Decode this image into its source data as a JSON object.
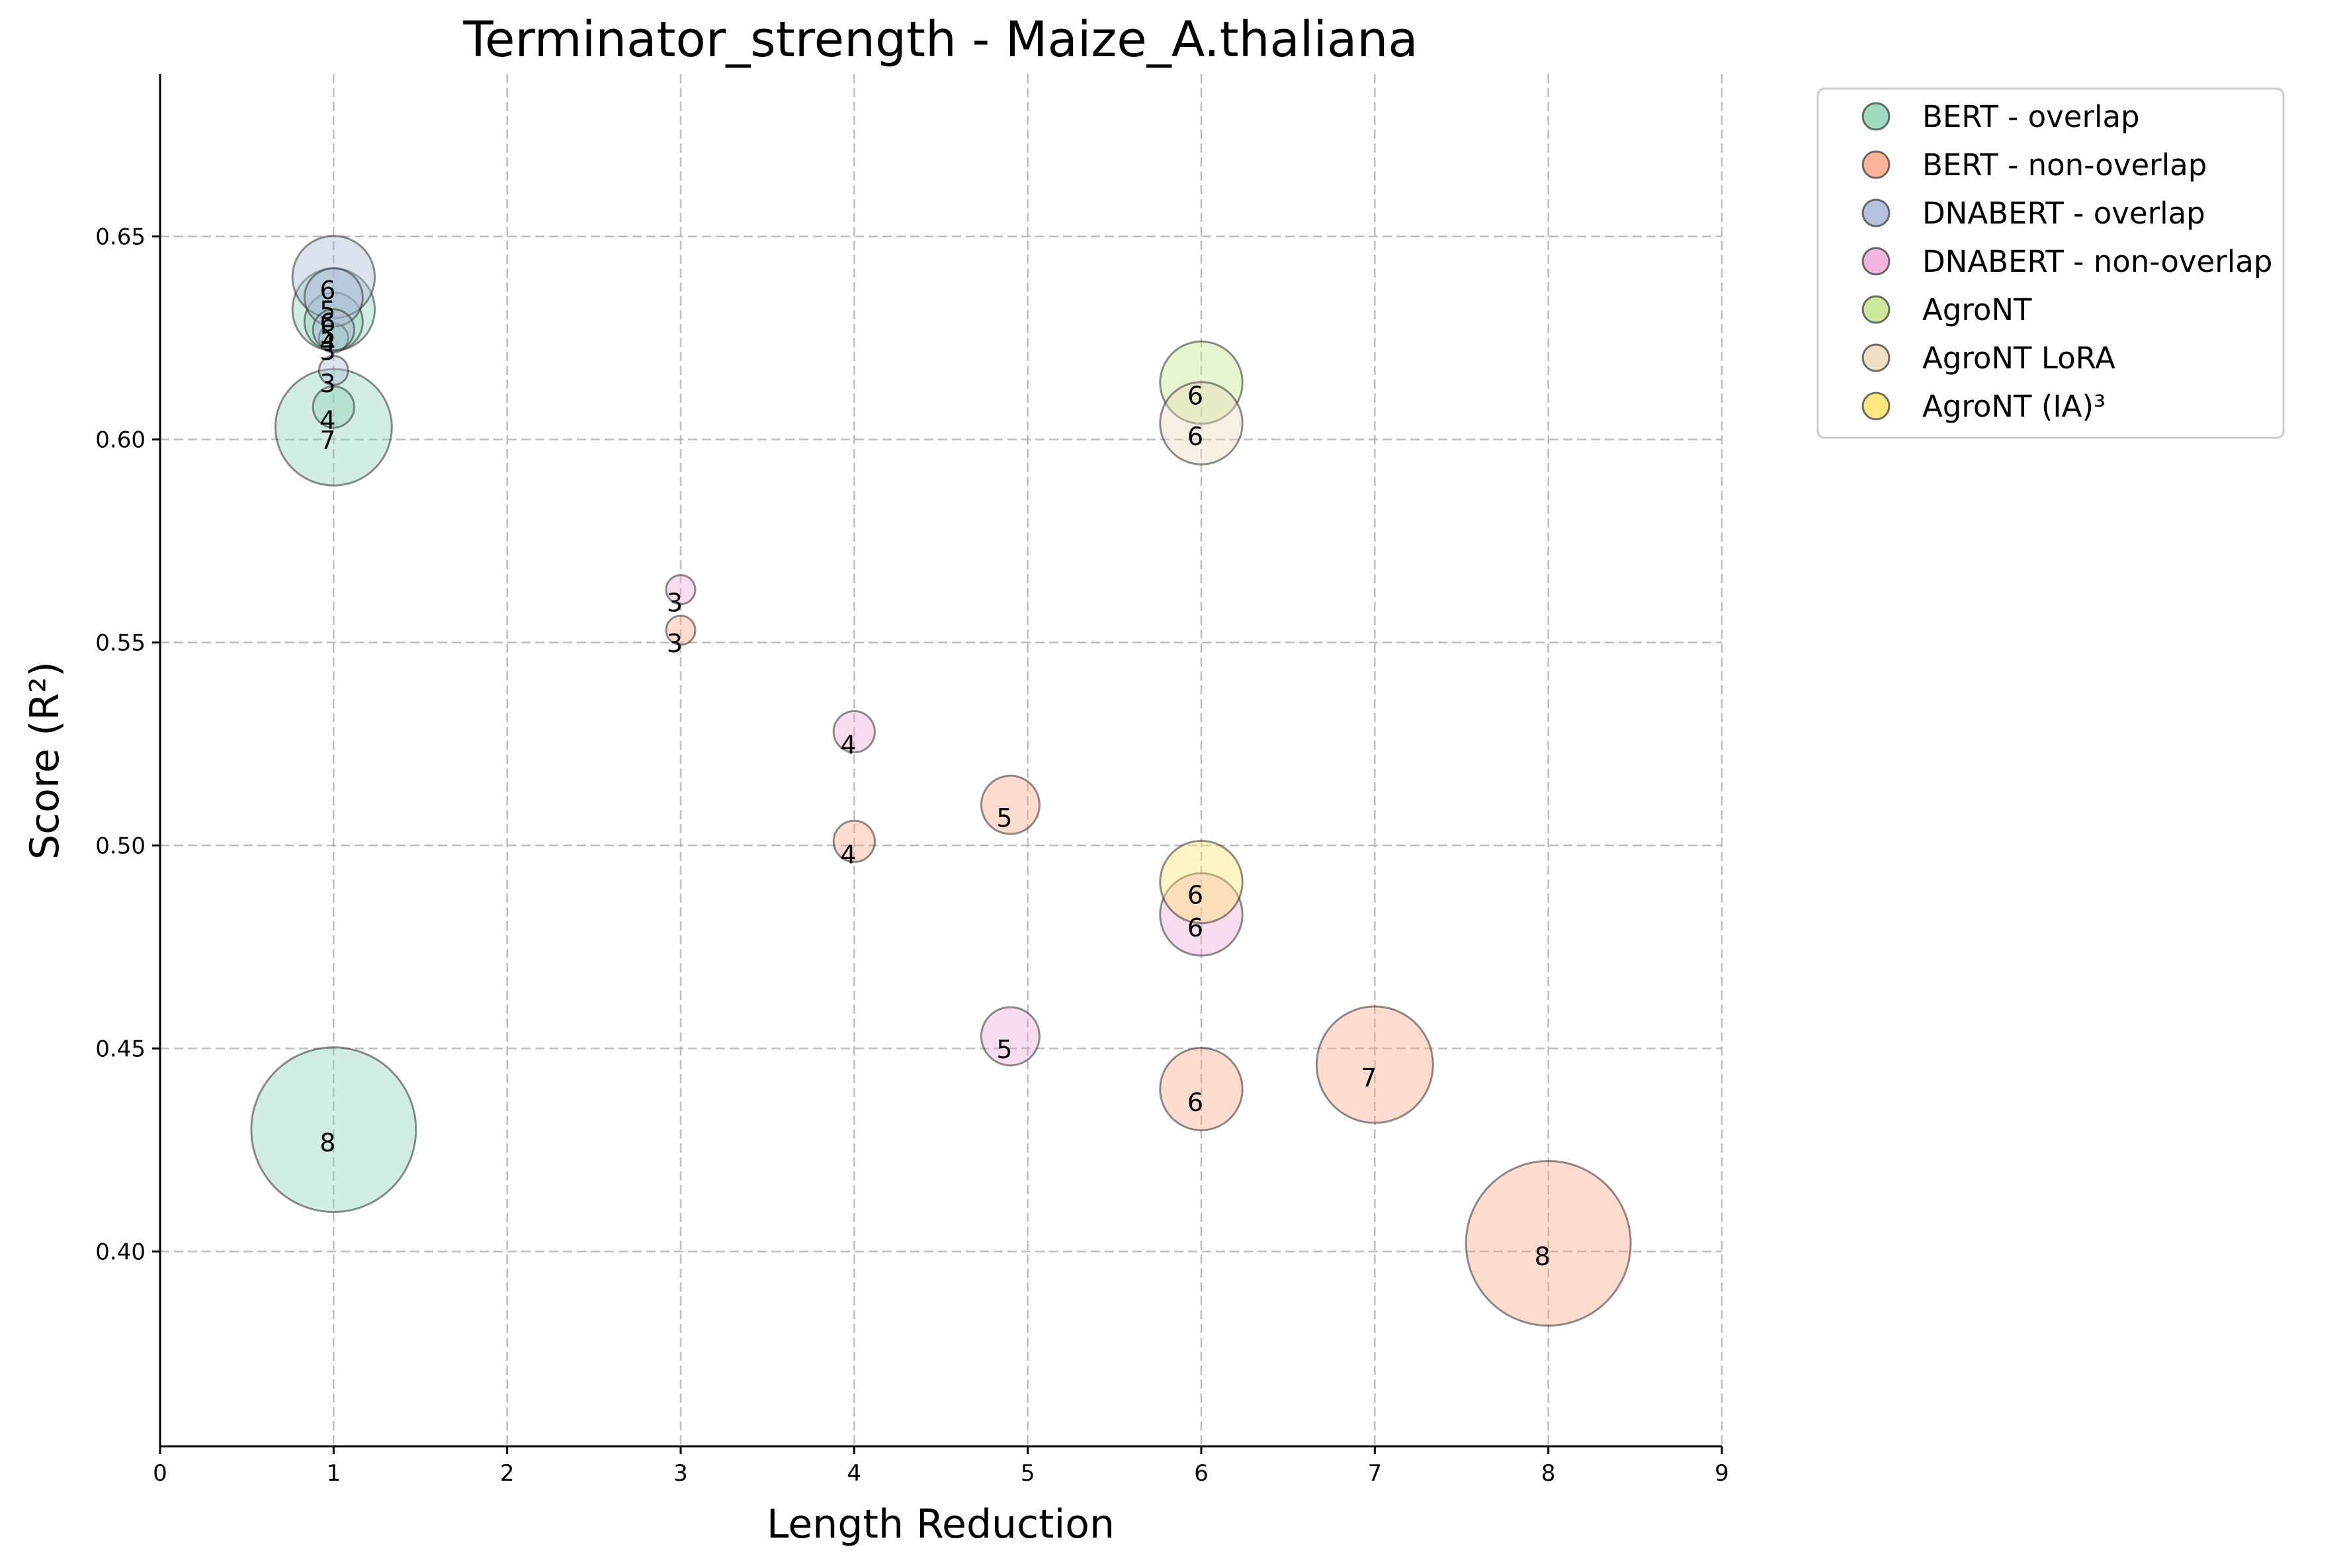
{
  "chart_data": {
    "type": "scatter",
    "title": "Terminator_strength - Maize_A.thaliana",
    "xlabel": "Length Reduction",
    "ylabel": "Score (R²)",
    "xlim": [
      0,
      9
    ],
    "ylim": [
      0.352,
      0.69
    ],
    "xticks": [
      "0",
      "1",
      "2",
      "3",
      "4",
      "5",
      "6",
      "7",
      "8",
      "9"
    ],
    "xtick_values": [
      0,
      1,
      2,
      3,
      4,
      5,
      6,
      7,
      8,
      9
    ],
    "yticks": [
      "0.40",
      "0.45",
      "0.50",
      "0.55",
      "0.60",
      "0.65"
    ],
    "ytick_values": [
      0.4,
      0.45,
      0.5,
      0.55,
      0.6,
      0.65
    ],
    "grid": true,
    "legend_position": "outside-top-right",
    "series": [
      {
        "name": "BERT - overlap",
        "color": "#8fd3b9",
        "points": [
          {
            "x": 1,
            "y": 0.43,
            "label": "8",
            "size": 8
          },
          {
            "x": 1,
            "y": 0.603,
            "label": "7",
            "size": 7
          },
          {
            "x": 1,
            "y": 0.632,
            "label": "6",
            "size": 6
          },
          {
            "x": 1,
            "y": 0.629,
            "label": "5",
            "size": 5
          },
          {
            "x": 1,
            "y": 0.608,
            "label": "4",
            "size": 4
          },
          {
            "x": 1,
            "y": 0.625,
            "label": "3",
            "size": 3
          }
        ]
      },
      {
        "name": "BERT - non-overlap",
        "color": "#fca88a",
        "points": [
          {
            "x": 3,
            "y": 0.553,
            "label": "3",
            "size": 3
          },
          {
            "x": 4,
            "y": 0.501,
            "label": "4",
            "size": 4
          },
          {
            "x": 4.9,
            "y": 0.51,
            "label": "5",
            "size": 5
          },
          {
            "x": 6,
            "y": 0.44,
            "label": "6",
            "size": 6
          },
          {
            "x": 7,
            "y": 0.446,
            "label": "7",
            "size": 7
          },
          {
            "x": 8,
            "y": 0.402,
            "label": "8",
            "size": 8
          }
        ]
      },
      {
        "name": "DNABERT - overlap",
        "color": "#a9b6d8",
        "points": [
          {
            "x": 1,
            "y": 0.64,
            "label": "6",
            "size": 6
          },
          {
            "x": 1,
            "y": 0.635,
            "label": "5",
            "size": 5
          },
          {
            "x": 1,
            "y": 0.627,
            "label": "4",
            "size": 4
          },
          {
            "x": 1,
            "y": 0.617,
            "label": "3",
            "size": 3
          }
        ]
      },
      {
        "name": "DNABERT - non-overlap",
        "color": "#eea8d8",
        "points": [
          {
            "x": 3,
            "y": 0.563,
            "label": "3",
            "size": 3
          },
          {
            "x": 4,
            "y": 0.528,
            "label": "4",
            "size": 4
          },
          {
            "x": 4.9,
            "y": 0.453,
            "label": "5",
            "size": 5
          },
          {
            "x": 6,
            "y": 0.483,
            "label": "6",
            "size": 6
          }
        ]
      },
      {
        "name": "AgroNT",
        "color": "#c5e58d",
        "points": [
          {
            "x": 6,
            "y": 0.614,
            "label": "6",
            "size": 6
          }
        ]
      },
      {
        "name": "AgroNT LoRA",
        "color": "#ecd9bb",
        "points": [
          {
            "x": 6,
            "y": 0.604,
            "label": "6",
            "size": 6
          }
        ]
      },
      {
        "name": "AgroNT (IA)³",
        "color": "#fee46b",
        "points": [
          {
            "x": 6,
            "y": 0.491,
            "label": "6",
            "size": 6
          }
        ]
      }
    ]
  }
}
